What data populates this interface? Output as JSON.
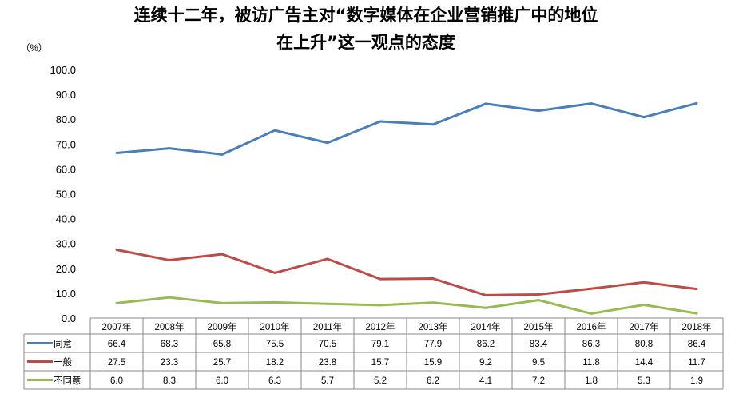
{
  "chart_data": {
    "type": "line",
    "title_line1": "连续十二年，被访广告主对“数字媒体在企业营销推广中的地位",
    "title_line2": "在上升”这一观点的态度",
    "ylabel": "（%）",
    "ylim": [
      0,
      100
    ],
    "yticks": [
      "0.0",
      "10.0",
      "20.0",
      "30.0",
      "40.0",
      "50.0",
      "60.0",
      "70.0",
      "80.0",
      "90.0",
      "100.0"
    ],
    "grid": false,
    "legend": "data-table-below",
    "categories": [
      "2007年",
      "2008年",
      "2009年",
      "2010年",
      "2011年",
      "2012年",
      "2013年",
      "2014年",
      "2015年",
      "2016年",
      "2017年",
      "2018年"
    ],
    "series": [
      {
        "name": "同意",
        "color": "#4a7ebb",
        "values": [
          66.4,
          68.3,
          65.8,
          75.5,
          70.5,
          79.1,
          77.9,
          86.2,
          83.4,
          86.3,
          80.8,
          86.4
        ]
      },
      {
        "name": "一般",
        "color": "#be4b48",
        "values": [
          27.5,
          23.3,
          25.7,
          18.2,
          23.8,
          15.7,
          15.9,
          9.2,
          9.5,
          11.8,
          14.4,
          11.7
        ]
      },
      {
        "name": "不同意",
        "color": "#98b954",
        "values": [
          6.0,
          8.3,
          6.0,
          6.3,
          5.7,
          5.2,
          6.2,
          4.1,
          7.2,
          1.8,
          5.3,
          1.9
        ]
      }
    ]
  }
}
